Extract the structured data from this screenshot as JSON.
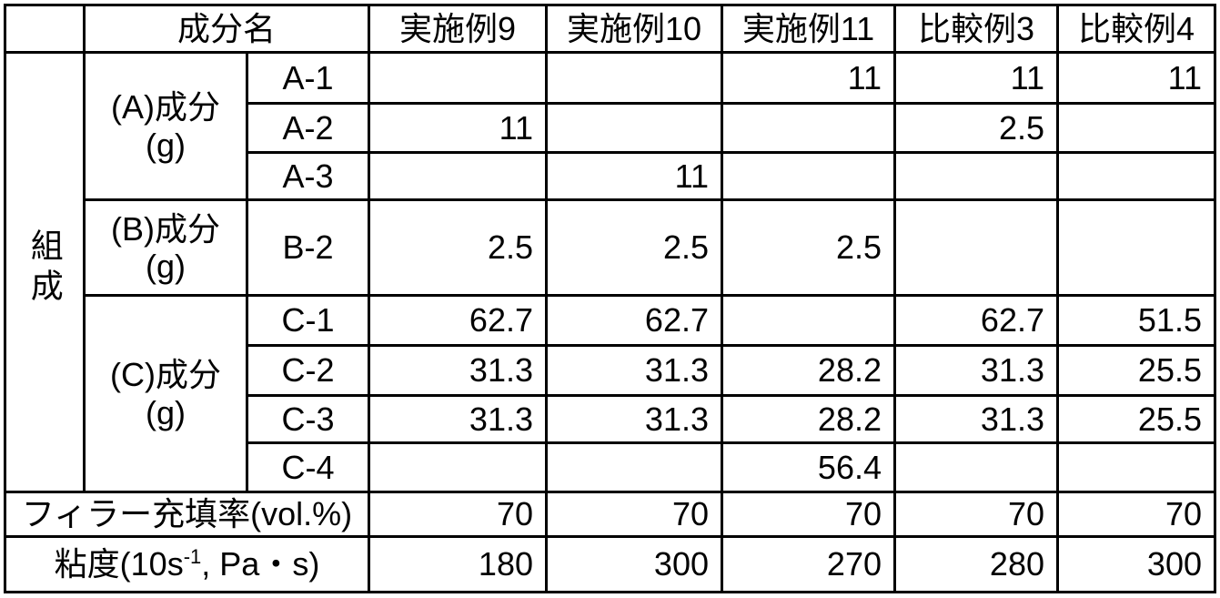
{
  "table": {
    "corner_label": "",
    "component_name_header": "成分名",
    "example_columns": [
      "実施例9",
      "実施例10",
      "実施例11",
      "比較例3",
      "比較例4"
    ],
    "row_group_label": "組成",
    "groups": [
      {
        "label_line1": "(A)成分",
        "label_line2": "(g)",
        "rows": [
          {
            "component": "A-1",
            "values": [
              "",
              "",
              "11",
              "11",
              "11"
            ]
          },
          {
            "component": "A-2",
            "values": [
              "11",
              "",
              "",
              "2.5",
              ""
            ]
          },
          {
            "component": "A-3",
            "values": [
              "",
              "11",
              "",
              "",
              ""
            ]
          }
        ]
      },
      {
        "label_line1": "(B)成分",
        "label_line2": "(g)",
        "rows": [
          {
            "component": "B-2",
            "values": [
              "2.5",
              "2.5",
              "2.5",
              "",
              ""
            ]
          }
        ]
      },
      {
        "label_line1": "(C)成分",
        "label_line2": "(g)",
        "rows": [
          {
            "component": "C-1",
            "values": [
              "62.7",
              "62.7",
              "",
              "62.7",
              "51.5"
            ]
          },
          {
            "component": "C-2",
            "values": [
              "31.3",
              "31.3",
              "28.2",
              "31.3",
              "25.5"
            ]
          },
          {
            "component": "C-3",
            "values": [
              "31.3",
              "31.3",
              "28.2",
              "31.3",
              "25.5"
            ]
          },
          {
            "component": "C-4",
            "values": [
              "",
              "",
              "56.4",
              "",
              ""
            ]
          }
        ]
      }
    ],
    "summary_rows": [
      {
        "label": "フィラー充填率(vol.%)",
        "values": [
          "70",
          "70",
          "70",
          "70",
          "70"
        ]
      },
      {
        "label_prefix": "粘度(10s",
        "label_sup": "-1",
        "label_suffix": ", Pa・s)",
        "values": [
          "180",
          "300",
          "270",
          "280",
          "300"
        ]
      }
    ],
    "colors": {
      "border": "#000000",
      "background": "#ffffff",
      "text": "#000000"
    }
  }
}
